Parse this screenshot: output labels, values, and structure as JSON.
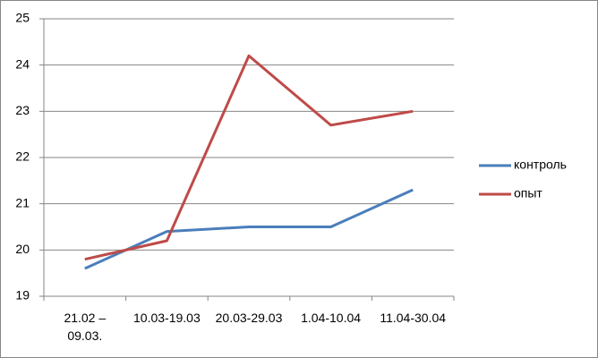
{
  "chart_data": {
    "type": "line",
    "categories": [
      "21.02 – 09.03.",
      "10.03-19.03",
      "20.03-29.03",
      "1.04-10.04",
      "11.04-30.04"
    ],
    "series": [
      {
        "name": "контроль",
        "color": "#4a7ebb",
        "values": [
          19.6,
          20.4,
          20.5,
          20.5,
          21.3
        ]
      },
      {
        "name": "опыт",
        "color": "#be4b48",
        "values": [
          19.8,
          20.2,
          24.2,
          22.7,
          23.0
        ]
      }
    ],
    "ylim": [
      19,
      25
    ],
    "yticks": [
      19,
      20,
      21,
      22,
      23,
      24,
      25
    ],
    "grid": true,
    "legend": "right"
  }
}
